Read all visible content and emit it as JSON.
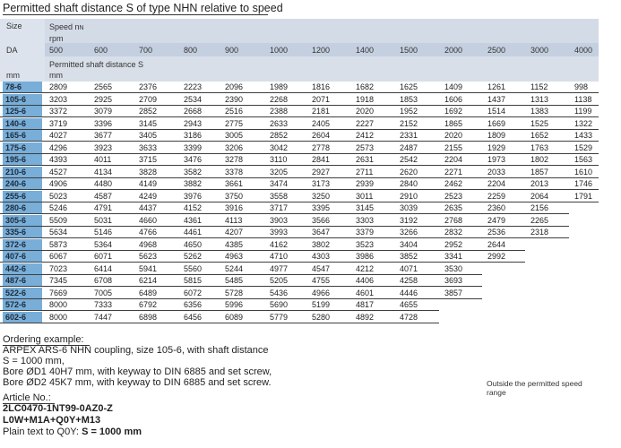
{
  "title": "Permitted shaft distance S of type NHN relative to speed",
  "header": {
    "size_label": "Size",
    "speed_label": "Speed n",
    "speed_sub": "N",
    "rpm_label": "rpm",
    "da_label": "DA",
    "mm_label": "mm",
    "perm_label": "Permitted shaft distance S",
    "perm_unit": "mm",
    "speeds": [
      "500",
      "600",
      "700",
      "800",
      "900",
      "1000",
      "1200",
      "1400",
      "1500",
      "2000",
      "2500",
      "3000",
      "4000"
    ]
  },
  "rows": [
    {
      "size": "78-6",
      "values": [
        "2809",
        "2565",
        "2376",
        "2223",
        "2096",
        "1989",
        "1816",
        "1682",
        "1625",
        "1409",
        "1261",
        "1152",
        "998"
      ]
    },
    {
      "size": "105-6",
      "values": [
        "3203",
        "2925",
        "2709",
        "2534",
        "2390",
        "2268",
        "2071",
        "1918",
        "1853",
        "1606",
        "1437",
        "1313",
        "1138"
      ]
    },
    {
      "size": "125-6",
      "values": [
        "3372",
        "3079",
        "2852",
        "2668",
        "2516",
        "2388",
        "2181",
        "2020",
        "1952",
        "1692",
        "1514",
        "1383",
        "1199"
      ]
    },
    {
      "size": "140-6",
      "values": [
        "3719",
        "3396",
        "3145",
        "2943",
        "2775",
        "2633",
        "2405",
        "2227",
        "2152",
        "1865",
        "1669",
        "1525",
        "1322"
      ]
    },
    {
      "size": "165-6",
      "values": [
        "4027",
        "3677",
        "3405",
        "3186",
        "3005",
        "2852",
        "2604",
        "2412",
        "2331",
        "2020",
        "1809",
        "1652",
        "1433"
      ]
    },
    {
      "size": "175-6",
      "values": [
        "4296",
        "3923",
        "3633",
        "3399",
        "3206",
        "3042",
        "2778",
        "2573",
        "2487",
        "2155",
        "1929",
        "1763",
        "1529"
      ]
    },
    {
      "size": "195-6",
      "values": [
        "4393",
        "4011",
        "3715",
        "3476",
        "3278",
        "3110",
        "2841",
        "2631",
        "2542",
        "2204",
        "1973",
        "1802",
        "1563"
      ]
    },
    {
      "size": "210-6",
      "values": [
        "4527",
        "4134",
        "3828",
        "3582",
        "3378",
        "3205",
        "2927",
        "2711",
        "2620",
        "2271",
        "2033",
        "1857",
        "1610"
      ]
    },
    {
      "size": "240-6",
      "values": [
        "4906",
        "4480",
        "4149",
        "3882",
        "3661",
        "3474",
        "3173",
        "2939",
        "2840",
        "2462",
        "2204",
        "2013",
        "1746"
      ]
    },
    {
      "size": "255-6",
      "values": [
        "5023",
        "4587",
        "4249",
        "3976",
        "3750",
        "3558",
        "3250",
        "3011",
        "2910",
        "2523",
        "2259",
        "2064",
        "1791"
      ]
    },
    {
      "size": "280-6",
      "values": [
        "5246",
        "4791",
        "4437",
        "4152",
        "3916",
        "3717",
        "3395",
        "3145",
        "3039",
        "2635",
        "2360",
        "2156"
      ]
    },
    {
      "size": "305-6",
      "values": [
        "5509",
        "5031",
        "4660",
        "4361",
        "4113",
        "3903",
        "3566",
        "3303",
        "3192",
        "2768",
        "2479",
        "2265"
      ]
    },
    {
      "size": "335-6",
      "values": [
        "5634",
        "5146",
        "4766",
        "4461",
        "4207",
        "3993",
        "3647",
        "3379",
        "3266",
        "2832",
        "2536",
        "2318"
      ]
    },
    {
      "size": "372-6",
      "values": [
        "5873",
        "5364",
        "4968",
        "4650",
        "4385",
        "4162",
        "3802",
        "3523",
        "3404",
        "2952",
        "2644"
      ]
    },
    {
      "size": "407-6",
      "values": [
        "6067",
        "6071",
        "5623",
        "5262",
        "4963",
        "4710",
        "4303",
        "3986",
        "3852",
        "3341",
        "2992"
      ]
    },
    {
      "size": "442-6",
      "values": [
        "7023",
        "6414",
        "5941",
        "5560",
        "5244",
        "4977",
        "4547",
        "4212",
        "4071",
        "3530"
      ]
    },
    {
      "size": "487-6",
      "values": [
        "7345",
        "6708",
        "6214",
        "5815",
        "5485",
        "5205",
        "4755",
        "4406",
        "4258",
        "3693"
      ]
    },
    {
      "size": "522-6",
      "values": [
        "7669",
        "7005",
        "6489",
        "6072",
        "5728",
        "5436",
        "4966",
        "4601",
        "4446",
        "3857"
      ]
    },
    {
      "size": "572-6",
      "values": [
        "8000",
        "7333",
        "6792",
        "6356",
        "5996",
        "5690",
        "5199",
        "4817",
        "4655"
      ]
    },
    {
      "size": "602-6",
      "values": [
        "8000",
        "7447",
        "6898",
        "6456",
        "6089",
        "5779",
        "5280",
        "4892",
        "4728"
      ]
    }
  ],
  "note": "Outside the permitted speed range",
  "example": {
    "heading": "Ordering example:",
    "line1": "ARPEX ARS-6 NHN coupling, size 105-6, with shaft distance",
    "line2": "S = 1000 mm,",
    "line3_pre": "Bore ØD1 40H7 mm, with keyway to DIN 6885 and set screw,",
    "line4_pre": "Bore ØD2 45K7 mm, with keyway to DIN 6885 and set screw.",
    "article_label": "Article No.:",
    "article_no": "2LC0470-1NT99-0AZ0-Z",
    "codes": "L0W+M1A+Q0Y+M13",
    "plain_label": "Plain text to Q0Y: ",
    "plain_value": "S = 1000 mm"
  }
}
